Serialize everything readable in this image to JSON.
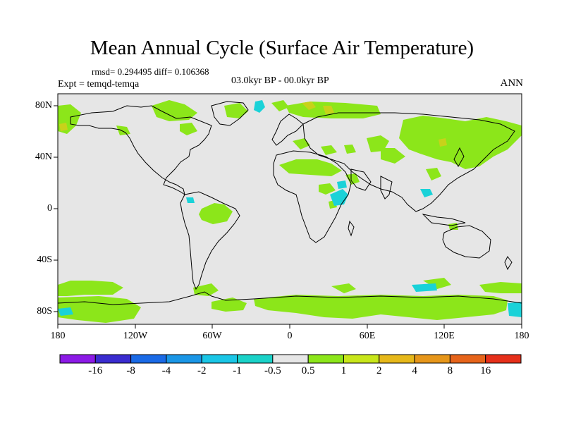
{
  "title": "Mean Annual Cycle (Surface Air Temperature)",
  "stats": "rmsd= 0.294495 diff= 0.106368",
  "period": "03.0kyr BP - 00.0kyr BP",
  "experiment": "Expt = temqd-temqa",
  "season": "ANN",
  "lat_labels": [
    "80N",
    "40N",
    "0",
    "40S",
    "80S"
  ],
  "lon_labels": [
    "180",
    "120W",
    "60W",
    "0",
    "60E",
    "120E",
    "180"
  ],
  "background_color": "#e6e6e6",
  "colorbar": {
    "labels": [
      "-16",
      "-8",
      "-4",
      "-2",
      "-1",
      "-0.5",
      "0.5",
      "1",
      "2",
      "4",
      "8",
      "16"
    ],
    "colors": [
      "#8c1ae6",
      "#3a2ccf",
      "#1a6ae6",
      "#1a96e6",
      "#1ac6e6",
      "#1ad2c8",
      "#e6e6e6",
      "#8ce61a",
      "#c8e61a",
      "#e6b81a",
      "#e6961a",
      "#e6641a",
      "#e6301a"
    ]
  },
  "anomaly_colors": {
    "green": "#8ce61a",
    "olive": "#c8d21a",
    "cyan": "#1ad2d8"
  }
}
